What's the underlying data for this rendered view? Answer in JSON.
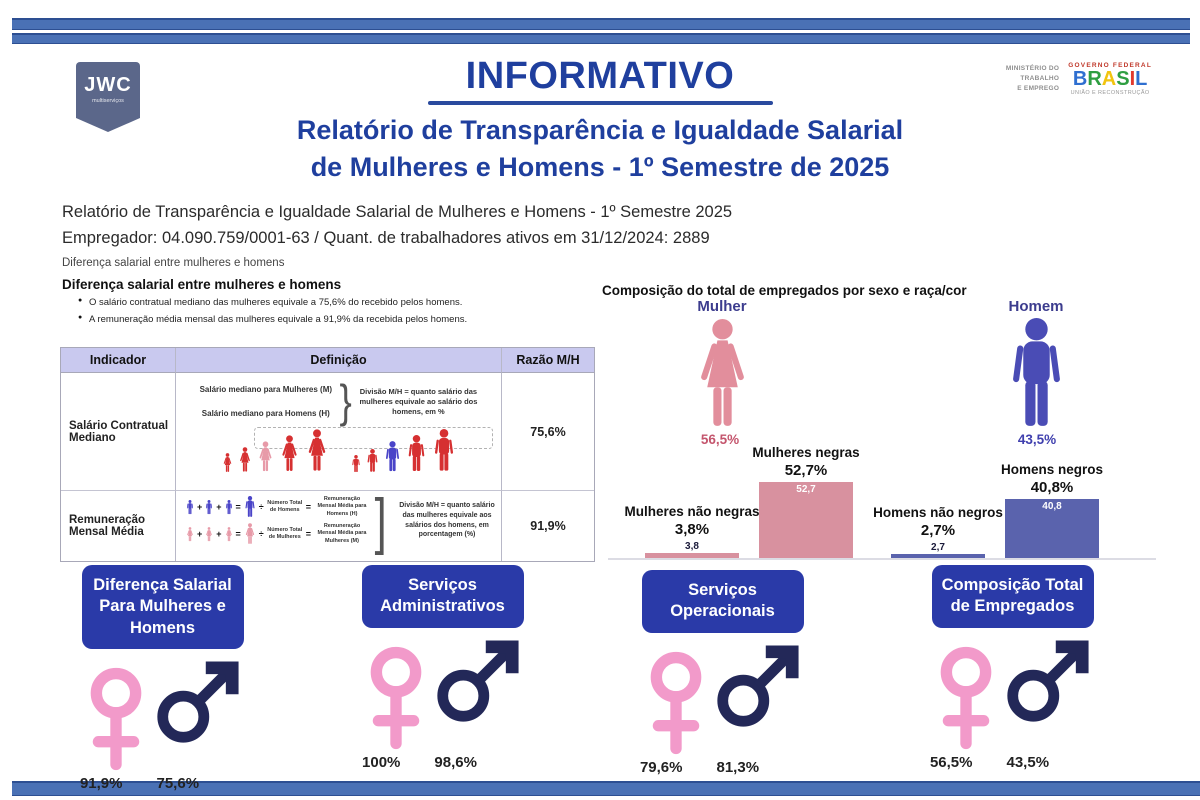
{
  "brand": {
    "logo": "JWC",
    "logo_sub": "multiserviços"
  },
  "header": {
    "title": "INFORMATIVO",
    "ministry": [
      "MINISTÉRIO DO",
      "TRABALHO",
      "E EMPREGO"
    ],
    "gov_federal": "GOVERNO FEDERAL",
    "gov_letters": [
      "B",
      "R",
      "A",
      "S",
      "I",
      "L"
    ],
    "gov_tagline": "UNIÃO E RECONSTRUÇÃO",
    "subtitle_line1": "Relatório de Transparência e Igualdade Salarial",
    "subtitle_line2": "de Mulheres e Homens - 1º Semestre de 2025"
  },
  "meta": {
    "line1": "Relatório de Transparência e Igualdade Salarial de Mulheres e Homens - 1º Semestre 2025",
    "line2": "Empregador: 04.090.759/0001-63 /  Quant. de trabalhadores ativos em 31/12/2024: 2889",
    "line3": "Diferença salarial entre mulheres e homens"
  },
  "left": {
    "heading": "Diferença salarial entre mulheres e homens",
    "bullets": [
      "O salário contratual mediano das mulheres equivale a 75,6% do recebido pelos homens.",
      "A remuneração média mensal das mulheres equivale a 91,9% da recebida pelos homens."
    ],
    "table": {
      "headers": [
        "Indicador",
        "Definição",
        "Razão M/H"
      ],
      "row1": {
        "indicator": "Salário Contratual Mediano",
        "def_top": "Salário mediano para Mulheres (M)",
        "def_bottom": "Salário mediano para Homens (H)",
        "note": "Divisão M/H = quanto salário das mulheres equivale ao salário dos homens, em %",
        "ratio": "75,6%"
      },
      "row2": {
        "indicator": "Remuneração Mensal Média",
        "divide_sign": "÷",
        "plus_sign": "+",
        "equals_sign": "=",
        "men_divisor": "Número Total de Homens",
        "men_result": "Remuneração Mensal Média para Homens (H)",
        "women_divisor": "Número Total de Mulheres",
        "women_result": "Remuneração Mensal Média para Mulheres (M)",
        "note": "Divisão M/H = quanto salário das mulheres equivale aos salários dos homens, em porcentagem (%)",
        "ratio": "91,9%"
      }
    }
  },
  "right": {
    "heading": "Composição do total de empregados por sexo e raça/cor",
    "female_label": "Mulher",
    "female_value": "56,5%",
    "male_label": "Homem",
    "male_value": "43,5%",
    "bars": [
      {
        "label": "Mulheres não negras",
        "pct": "3,8%",
        "bar_label": "3,8"
      },
      {
        "label": "Mulheres negras",
        "pct": "52,7%",
        "bar_label": "52,7"
      },
      {
        "label": "Homens não negros",
        "pct": "2,7%",
        "bar_label": "2,7"
      },
      {
        "label": "Homens negros",
        "pct": "40,8%",
        "bar_label": "40,8"
      }
    ]
  },
  "chart_data": {
    "type": "bar",
    "title": "Composição do total de empregados por sexo e raça/cor",
    "categories": [
      "Mulheres não negras",
      "Mulheres negras",
      "Homens não negros",
      "Homens negros"
    ],
    "values": [
      3.8,
      52.7,
      2.7,
      40.8
    ],
    "bar_colors": [
      "#d8919f",
      "#d8919f",
      "#5a63ad",
      "#5a63ad"
    ],
    "totals": {
      "Mulher": 56.5,
      "Homem": 43.5
    },
    "unit": "%",
    "ylim": [
      0,
      60
    ],
    "grid": false,
    "legend": false
  },
  "cards": [
    {
      "title": "Diferença Salarial Para Mulheres e Homens",
      "female_value": "91,9%",
      "male_value": "75,6%"
    },
    {
      "title": "Serviços Administrativos",
      "female_value": "100%",
      "male_value": "98,6%"
    },
    {
      "title": "Serviços Operacionais",
      "female_value": "79,6%",
      "male_value": "81,3%"
    },
    {
      "title": "Composição Total de Empregados",
      "female_value": "56,5%",
      "male_value": "43,5%"
    }
  ],
  "colors": {
    "stripe_blue": "#4a71b5",
    "title_blue": "#1f3f9e",
    "card_blue": "#2a3aa8",
    "table_header_bg": "#c9c9ef",
    "woman_pink": "#e28e9c",
    "man_blue": "#4a4cb5",
    "bar_pink": "#d8919f",
    "bar_blue": "#5a63ad",
    "female_sign_pink": "#f29aca",
    "male_sign_navy": "#232858",
    "crowd_red": "#d63031"
  }
}
